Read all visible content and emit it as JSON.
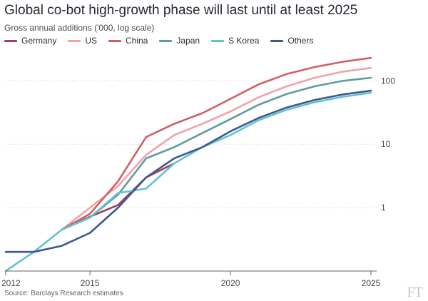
{
  "chart_data": {
    "type": "line",
    "title": "Global co-bot high-growth phase will last until at least 2025",
    "subtitle": "Gross annual additions ('000, log scale)",
    "source": "Source: Barclays Research estimates",
    "logo": "FT",
    "y_scale": "log",
    "ylim": [
      0.1,
      250
    ],
    "xlim": [
      2012,
      2025
    ],
    "x_ticks": [
      {
        "value": 2012,
        "label": "2012"
      },
      {
        "value": 2015,
        "label": "2015"
      },
      {
        "value": 2020,
        "label": "2020"
      },
      {
        "value": 2025,
        "label": "2025"
      }
    ],
    "y_ticks": [
      {
        "value": 1,
        "label": "1"
      },
      {
        "value": 10,
        "label": "10"
      },
      {
        "value": 100,
        "label": "100"
      }
    ],
    "grid": true,
    "legend_position": "top-left",
    "x": [
      2012,
      2013,
      2014,
      2015,
      2016,
      2017,
      2018,
      2019,
      2020,
      2021,
      2022,
      2023,
      2024,
      2025
    ],
    "series": [
      {
        "name": "Germany",
        "color": "#a3405f",
        "values": [
          null,
          null,
          0.45,
          0.72,
          1.1,
          3.0,
          5.0,
          null,
          null,
          null,
          null,
          null,
          null,
          null
        ]
      },
      {
        "name": "US",
        "color": "#f0a3a8",
        "values": [
          null,
          null,
          0.45,
          1.0,
          2.2,
          6.8,
          14,
          21,
          33,
          55,
          82,
          112,
          140,
          160
        ]
      },
      {
        "name": "China",
        "color": "#d15f64",
        "values": [
          null,
          null,
          0.45,
          0.8,
          2.6,
          13,
          21,
          31,
          52,
          88,
          128,
          165,
          200,
          230
        ]
      },
      {
        "name": "Japan",
        "color": "#5f9c9e",
        "values": [
          null,
          null,
          0.45,
          0.7,
          1.6,
          6.0,
          9.0,
          15,
          25,
          42,
          62,
          82,
          100,
          112
        ]
      },
      {
        "name": "S Korea",
        "color": "#62c2d2",
        "values": [
          0.1,
          0.2,
          0.45,
          0.7,
          1.7,
          2.0,
          5.0,
          9.0,
          14,
          24,
          35,
          46,
          56,
          65
        ]
      },
      {
        "name": "Others",
        "color": "#3e5991",
        "values": [
          0.2,
          0.2,
          0.25,
          0.4,
          1.0,
          3.0,
          6.0,
          9.0,
          16,
          26,
          38,
          50,
          61,
          70
        ]
      }
    ]
  }
}
